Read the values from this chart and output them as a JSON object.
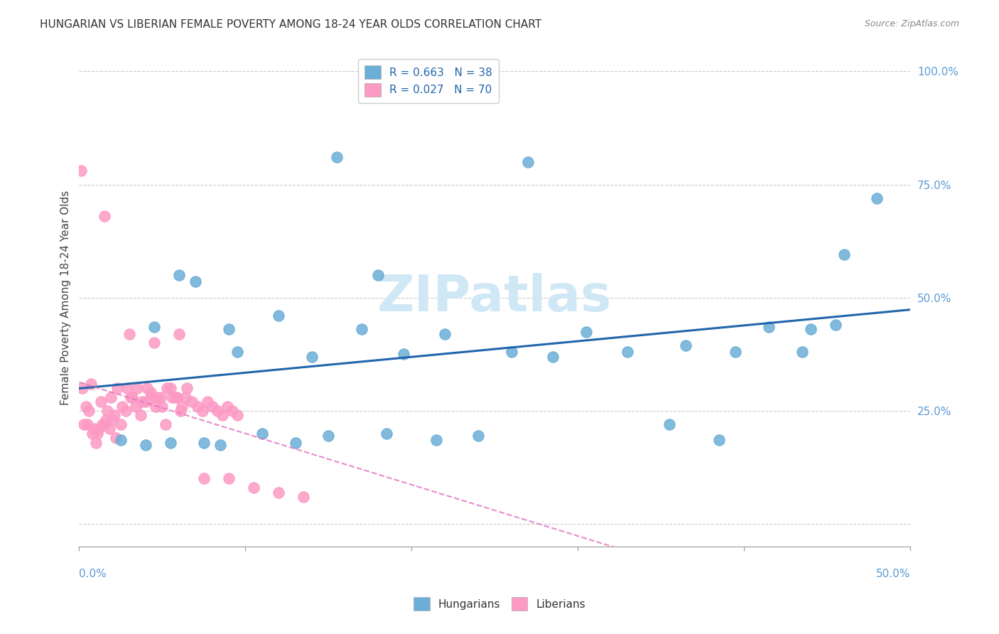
{
  "title": "HUNGARIAN VS LIBERIAN FEMALE POVERTY AMONG 18-24 YEAR OLDS CORRELATION CHART",
  "source": "Source: ZipAtlas.com",
  "ylabel": "Female Poverty Among 18-24 Year Olds",
  "yticks": [
    0.0,
    0.25,
    0.5,
    0.75,
    1.0
  ],
  "ytick_labels": [
    "",
    "25.0%",
    "50.0%",
    "75.0%",
    "100.0%"
  ],
  "xlim": [
    0.0,
    0.5
  ],
  "ylim": [
    -0.05,
    1.05
  ],
  "legend_r1": "R = 0.663   N = 38",
  "legend_r2": "R = 0.027   N = 70",
  "blue_color": "#6baed6",
  "pink_color": "#fc9ac4",
  "blue_line_color": "#2166ac",
  "pink_line_color": "#e377c2",
  "watermark": "ZIPatlas",
  "watermark_color": "#d0e8f5",
  "hun_x": [
    0.155,
    0.27,
    0.18,
    0.06,
    0.07,
    0.09,
    0.12,
    0.045,
    0.095,
    0.14,
    0.17,
    0.195,
    0.22,
    0.26,
    0.285,
    0.305,
    0.33,
    0.365,
    0.395,
    0.415,
    0.435,
    0.46,
    0.48,
    0.025,
    0.04,
    0.055,
    0.075,
    0.085,
    0.11,
    0.13,
    0.15,
    0.185,
    0.215,
    0.24,
    0.355,
    0.385,
    0.44,
    0.455
  ],
  "hun_y": [
    0.81,
    0.8,
    0.55,
    0.55,
    0.535,
    0.43,
    0.46,
    0.435,
    0.38,
    0.37,
    0.43,
    0.375,
    0.42,
    0.38,
    0.37,
    0.425,
    0.38,
    0.395,
    0.38,
    0.435,
    0.38,
    0.595,
    0.72,
    0.185,
    0.175,
    0.18,
    0.18,
    0.175,
    0.2,
    0.18,
    0.195,
    0.2,
    0.185,
    0.195,
    0.22,
    0.185,
    0.43,
    0.44
  ],
  "lib_x": [
    0.005,
    0.008,
    0.01,
    0.012,
    0.015,
    0.018,
    0.02,
    0.022,
    0.003,
    0.006,
    0.009,
    0.011,
    0.014,
    0.016,
    0.019,
    0.021,
    0.025,
    0.028,
    0.031,
    0.034,
    0.037,
    0.04,
    0.043,
    0.046,
    0.049,
    0.052,
    0.055,
    0.058,
    0.061,
    0.064,
    0.002,
    0.004,
    0.007,
    0.013,
    0.017,
    0.023,
    0.026,
    0.029,
    0.032,
    0.035,
    0.038,
    0.041,
    0.044,
    0.047,
    0.05,
    0.053,
    0.056,
    0.059,
    0.062,
    0.065,
    0.068,
    0.071,
    0.074,
    0.077,
    0.08,
    0.083,
    0.086,
    0.089,
    0.092,
    0.095,
    0.001,
    0.015,
    0.03,
    0.045,
    0.06,
    0.075,
    0.09,
    0.105,
    0.12,
    0.135
  ],
  "lib_y": [
    0.22,
    0.2,
    0.18,
    0.21,
    0.22,
    0.21,
    0.23,
    0.19,
    0.22,
    0.25,
    0.21,
    0.2,
    0.22,
    0.23,
    0.28,
    0.24,
    0.22,
    0.25,
    0.28,
    0.26,
    0.24,
    0.27,
    0.29,
    0.26,
    0.28,
    0.22,
    0.3,
    0.28,
    0.25,
    0.28,
    0.3,
    0.26,
    0.31,
    0.27,
    0.25,
    0.3,
    0.26,
    0.3,
    0.28,
    0.3,
    0.27,
    0.3,
    0.28,
    0.28,
    0.26,
    0.3,
    0.28,
    0.28,
    0.26,
    0.3,
    0.27,
    0.26,
    0.25,
    0.27,
    0.26,
    0.25,
    0.24,
    0.26,
    0.25,
    0.24,
    0.78,
    0.68,
    0.42,
    0.4,
    0.42,
    0.1,
    0.1,
    0.08,
    0.07,
    0.06
  ]
}
